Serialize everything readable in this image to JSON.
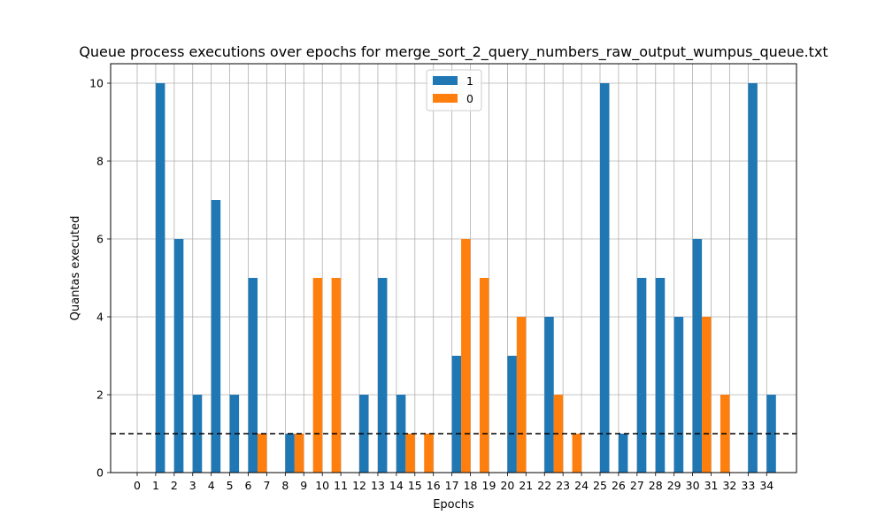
{
  "chart_data": {
    "type": "bar",
    "title": "Queue process executions over epochs for merge_sort_2_query_numbers_raw_output_wumpus_queue.txt",
    "xlabel": "Epochs",
    "ylabel": "Quantas executed",
    "ylim": [
      0,
      10.5
    ],
    "yticks": [
      0,
      2,
      4,
      6,
      8,
      10
    ],
    "categories": [
      "0",
      "1",
      "2",
      "3",
      "4",
      "5",
      "6",
      "7",
      "8",
      "9",
      "10",
      "11",
      "12",
      "13",
      "14",
      "15",
      "16",
      "17",
      "18",
      "19",
      "20",
      "21",
      "22",
      "23",
      "24",
      "25",
      "26",
      "27",
      "28",
      "29",
      "30",
      "31",
      "32",
      "33",
      "34"
    ],
    "series": [
      {
        "name": "1",
        "color": "#1f77b4",
        "values": [
          0,
          10,
          6,
          2,
          7,
          2,
          5,
          0,
          1,
          0,
          0,
          0,
          2,
          5,
          2,
          0,
          0,
          3,
          0,
          0,
          3,
          0,
          4,
          0,
          0,
          10,
          1,
          5,
          5,
          4,
          6,
          0,
          0,
          10,
          2
        ]
      },
      {
        "name": "0",
        "color": "#ff7f0e",
        "values": [
          0,
          0,
          0,
          0,
          0,
          0,
          0,
          1,
          0,
          1,
          5,
          5,
          0,
          0,
          0,
          1,
          1,
          0,
          6,
          5,
          0,
          4,
          0,
          2,
          1,
          0,
          0,
          0,
          0,
          0,
          0,
          4,
          2,
          0,
          0
        ]
      }
    ],
    "reference_line": {
      "y": 1,
      "style": "dashed",
      "color": "#000000"
    },
    "grid": true,
    "legend": "top-center"
  }
}
